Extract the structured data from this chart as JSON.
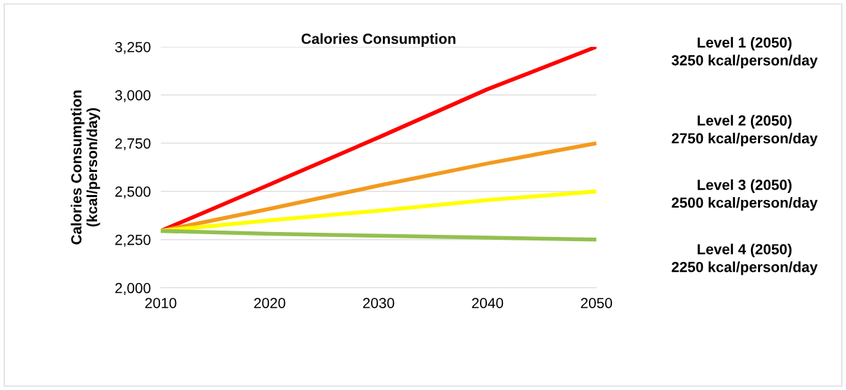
{
  "chart_data": {
    "type": "line",
    "title": "Calories Consumption",
    "ylabel": "Calories Consumption\n(kcal/person/day)",
    "categories": [
      "2010",
      "2020",
      "2030",
      "2040",
      "2050"
    ],
    "series": [
      {
        "color": "#ff0000",
        "values": [
          2295,
          2536,
          2780,
          3030,
          3250
        ]
      },
      {
        "color": "#f39a1e",
        "values": [
          2295,
          2410,
          2530,
          2645,
          2750
        ]
      },
      {
        "color": "#ffff00",
        "values": [
          2295,
          2350,
          2400,
          2455,
          2500
        ]
      },
      {
        "color": "#92c050",
        "values": [
          2295,
          2280,
          2270,
          2260,
          2250
        ]
      }
    ],
    "ylim": [
      2000,
      3250
    ],
    "yticks": [
      {
        "value": 2000,
        "label": "2,000"
      },
      {
        "value": 2250,
        "label": "2,250"
      },
      {
        "value": 2500,
        "label": "2,500"
      },
      {
        "value": 2750,
        "label": "2,750"
      },
      {
        "value": 3000,
        "label": "3,000"
      },
      {
        "value": 3250,
        "label": "3,250"
      }
    ],
    "grid": "y",
    "legend": false,
    "marker": "none",
    "line_style": "solid",
    "annotations": [
      "Level 1 (2050)\n3250 kcal/person/day",
      "Level 2 (2050)\n2750 kcal/person/day",
      "Level 3 (2050)\n2500 kcal/person/day",
      "Level 4 (2050)\n2250 kcal/person/day"
    ]
  }
}
